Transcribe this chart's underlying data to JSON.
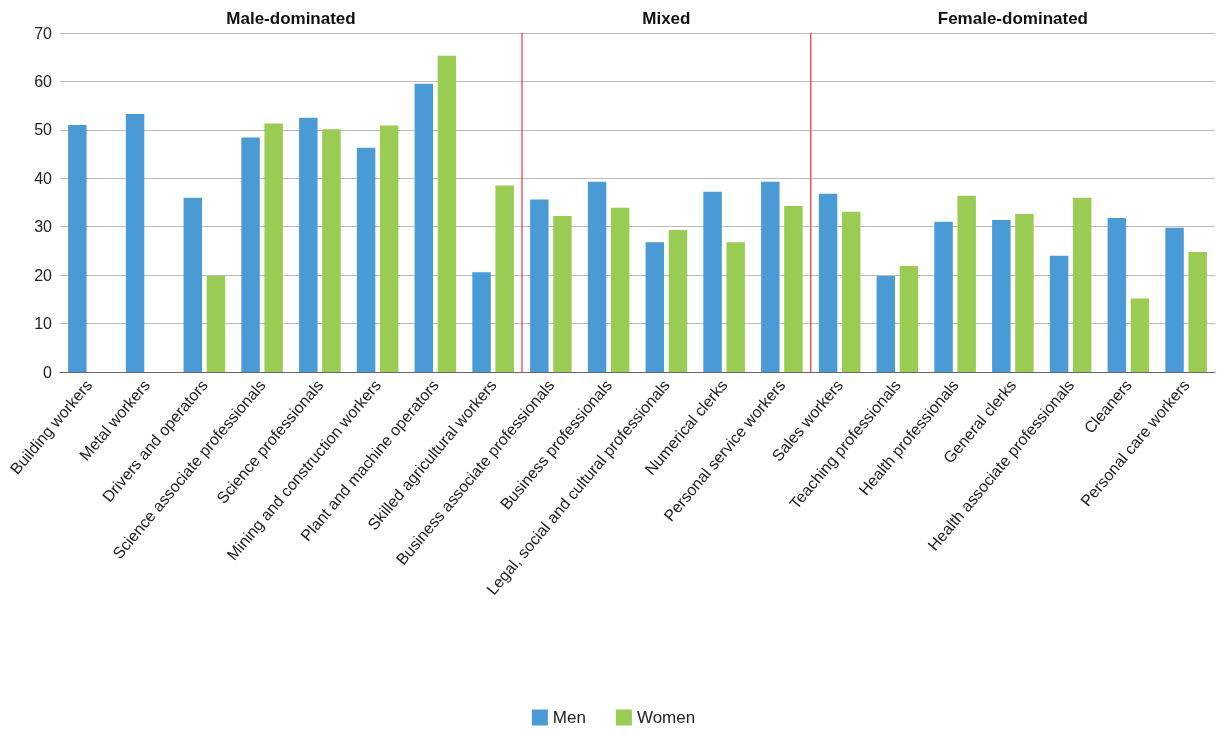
{
  "chart_data": {
    "type": "bar",
    "categories": [
      "Building workers",
      "Metal workers",
      "Drivers and operators",
      "Science associate professionals",
      "Science professionals",
      "Mining and construction workers",
      "Plant and machine operators",
      "Skilled agricultural workers",
      "Business associate professionals",
      "Business professionals",
      "Legal, social and cultural professionals",
      "Numerical clerks",
      "Personal service workers",
      "Sales workers",
      "Teaching professionals",
      "Health professionals",
      "General clerks",
      "Health associate professionals",
      "Cleaners",
      "Personal care workers"
    ],
    "series": [
      {
        "name": "Men",
        "color": "#4a9bd5",
        "values": [
          51,
          53.3,
          36,
          48.4,
          52.5,
          46.3,
          59.5,
          20.6,
          35.6,
          39.3,
          26.8,
          37.2,
          39.3,
          36.8,
          19.8,
          31,
          31.4,
          24,
          31.8,
          29.8
        ]
      },
      {
        "name": "Women",
        "color": "#9acb52",
        "values": [
          null,
          null,
          19.8,
          51.3,
          50.1,
          50.9,
          65.3,
          38.5,
          32.2,
          33.9,
          29.3,
          26.8,
          34.3,
          33.1,
          21.9,
          36.4,
          32.6,
          36,
          15.2,
          24.8
        ]
      }
    ],
    "ylim": [
      0,
      70
    ],
    "yticks": [
      0,
      10,
      20,
      30,
      40,
      50,
      60,
      70
    ],
    "grid": "y",
    "legend": "bottom",
    "annotations": [
      "Male-dominated",
      "Mixed",
      "Female-dominated"
    ]
  }
}
